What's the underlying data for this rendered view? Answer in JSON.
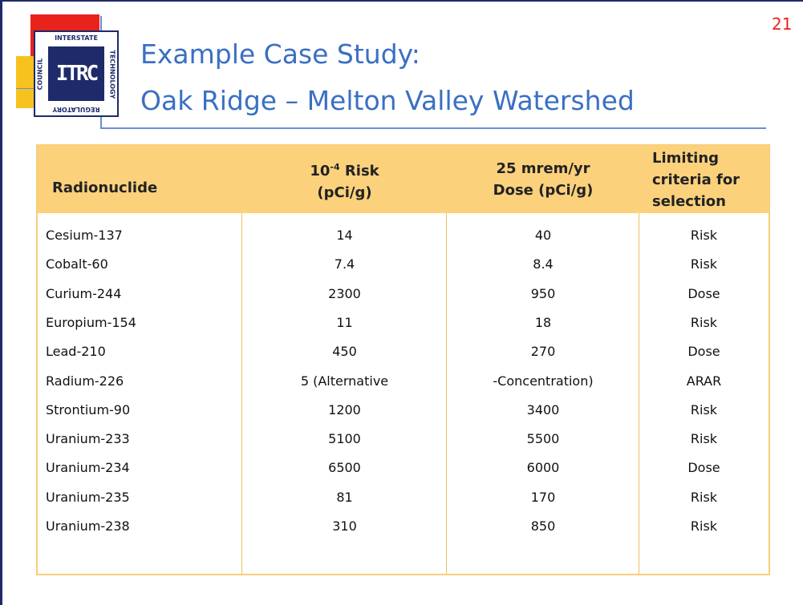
{
  "page_number": "21",
  "logo": {
    "mark": "ITRC",
    "top": "INTERSTATE",
    "left": "COUNCIL",
    "right": "TECHNOLOGY",
    "bottom": "REGULATORY"
  },
  "title": {
    "line1": "Example Case Study:",
    "line2": "Oak Ridge – Melton Valley Watershed"
  },
  "table": {
    "header": {
      "col0": "Radionuclide",
      "col1": {
        "base": "10",
        "sup": "-4",
        "rest": " Risk",
        "line2": "(pCi/g)"
      },
      "col2": {
        "line1": "25 mrem/yr",
        "line2": "Dose (pCi/g)"
      },
      "col3": {
        "line1": "Limiting",
        "line2": "criteria for",
        "line3": "selection"
      }
    },
    "rows": [
      [
        "Cesium-137",
        "14",
        "40",
        "Risk"
      ],
      [
        "Cobalt-60",
        "7.4",
        "8.4",
        "Risk"
      ],
      [
        "Curium-244",
        "2300",
        "950",
        "Dose"
      ],
      [
        "Europium-154",
        "11",
        "18",
        "Risk"
      ],
      [
        "Lead-210",
        "450",
        "270",
        "Dose"
      ],
      [
        "Radium-226",
        "5 (Alternative",
        "-Concentration)",
        "ARAR"
      ],
      [
        "Strontium-90",
        "1200",
        "3400",
        "Risk"
      ],
      [
        "Uranium-233",
        "5100",
        "5500",
        "Risk"
      ],
      [
        "Uranium-234",
        "6500",
        "6000",
        "Dose"
      ],
      [
        "Uranium-235",
        "81",
        "170",
        "Risk"
      ],
      [
        "Uranium-238",
        "310",
        "850",
        "Risk"
      ]
    ]
  }
}
